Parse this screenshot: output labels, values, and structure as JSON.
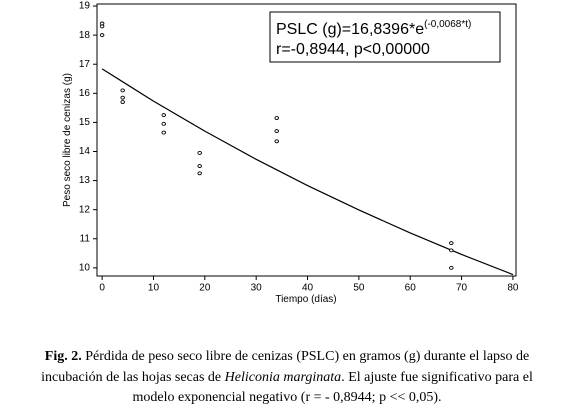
{
  "chart_data": {
    "type": "scatter",
    "x_label": "Tiempo (días)",
    "y_label": "Peso seco libre de cenizas (g)",
    "x": [
      0,
      0,
      0,
      4,
      4,
      4,
      12,
      12,
      12,
      19,
      19,
      19,
      34,
      34,
      34,
      68,
      68,
      68
    ],
    "values": [
      18.4,
      18.3,
      18.0,
      16.1,
      15.85,
      15.7,
      15.25,
      14.95,
      14.65,
      13.95,
      13.5,
      13.25,
      15.15,
      14.7,
      14.35,
      10.85,
      10.6,
      10.0
    ],
    "color": "#000000",
    "fit": {
      "x": [
        0,
        10,
        20,
        30,
        40,
        50,
        60,
        70,
        80
      ],
      "values": [
        16.84,
        15.73,
        14.7,
        13.73,
        12.83,
        11.99,
        11.2,
        10.46,
        9.77
      ]
    },
    "annotation": {
      "line1": "PSLC (g)=16,8396*e",
      "exponent": "(-0,0068*t)",
      "line2": "r=-0,8944, p<0,00000"
    },
    "xlim": [
      -1,
      80.6
    ],
    "ylim": [
      9.72,
      19.07
    ],
    "xticks": [
      0,
      10,
      20,
      30,
      40,
      50,
      60,
      70,
      80
    ],
    "yticks": [
      10,
      11,
      12,
      13,
      14,
      15,
      16,
      17,
      18,
      19
    ]
  },
  "caption": {
    "label": "Fig. 2.",
    "line1": " Pérdida de peso seco libre de cenizas (PSLC) en gramos (g) durante el lapso de",
    "line2a": "incubación de las hojas secas de ",
    "line2b": "Heliconia marginata",
    "line2c": ". El ajuste fue significativo para el",
    "line3": "modelo exponencial negativo (r  =  - 0,8944; p << 0,05)."
  }
}
